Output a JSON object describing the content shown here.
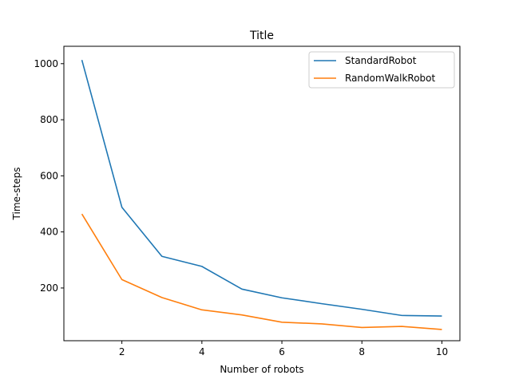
{
  "chart_data": {
    "type": "line",
    "title": "Title",
    "xlabel": "Number of robots",
    "ylabel": "Time-steps",
    "xlim": [
      0.55,
      10.45
    ],
    "ylim": [
      12,
      1062
    ],
    "xticks": [
      2,
      4,
      6,
      8,
      10
    ],
    "yticks": [
      200,
      400,
      600,
      800,
      1000
    ],
    "grid": false,
    "legend_position": "top-right",
    "x": [
      1,
      2,
      3,
      4,
      5,
      6,
      7,
      8,
      9,
      10
    ],
    "series": [
      {
        "name": "StandardRobot",
        "color": "#1f77b4",
        "values": [
          1013,
          488,
          313,
          277,
          196,
          165,
          144,
          124,
          102,
          100
        ]
      },
      {
        "name": "RandomWalkRobot",
        "color": "#ff7f0e",
        "values": [
          464,
          230,
          166,
          122,
          104,
          78,
          72,
          59,
          63,
          52
        ]
      }
    ]
  }
}
